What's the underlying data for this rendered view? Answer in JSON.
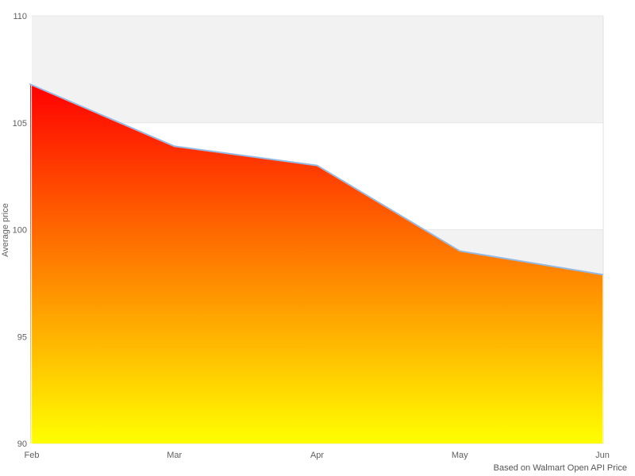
{
  "chart_data": {
    "type": "area",
    "title": "",
    "categories": [
      "Feb",
      "Mar",
      "Apr",
      "May",
      "Jun"
    ],
    "values": [
      106.8,
      103.9,
      103.0,
      99.0,
      97.9
    ],
    "xlabel": "",
    "ylabel": "Average price",
    "ylim": [
      90,
      110
    ],
    "yticks": [
      90,
      95,
      100,
      105,
      110
    ],
    "grid": true,
    "legend_position": "none",
    "plot_bands": [
      [
        105,
        110
      ],
      [
        95,
        100
      ]
    ],
    "band_color": "#f2f2f2",
    "grid_color": "#e6e6e6",
    "plot_border_color": "#e0e0e0",
    "line_color": "#94b9e2",
    "area_gradient_top": "#ff0000",
    "area_gradient_bottom": "#ffff00",
    "background_color": "#ffffff",
    "label_color": "#606060",
    "credits": "Based on Walmart Open API Price"
  }
}
